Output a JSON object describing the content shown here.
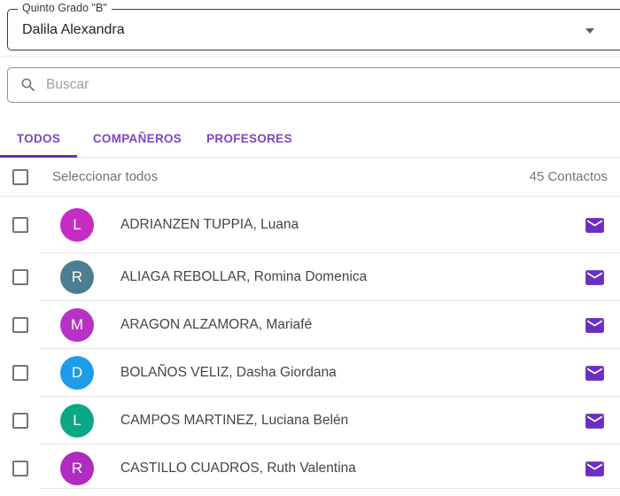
{
  "header": {
    "group_label": "Quinto Grado \"B\"",
    "selected_student": "Dalila Alexandra"
  },
  "search": {
    "placeholder": "Buscar"
  },
  "tabs": [
    {
      "label": "TODOS",
      "active": true
    },
    {
      "label": "COMPAÑEROS",
      "active": false
    },
    {
      "label": "PROFESORES",
      "active": false
    }
  ],
  "select_all": {
    "label": "Seleccionar todos",
    "count_label": "45 Contactos"
  },
  "contacts": [
    {
      "initial": "L",
      "name": "ADRIANZEN TUPPIA, Luana",
      "avatar_color": "#c42cc4"
    },
    {
      "initial": "R",
      "name": "ALIAGA REBOLLAR, Romina Domenica",
      "avatar_color": "#4d7d90"
    },
    {
      "initial": "M",
      "name": "ARAGON ALZAMORA, Mariafé",
      "avatar_color": "#b632c6"
    },
    {
      "initial": "D",
      "name": "BOLAÑOS VELIZ, Dasha Giordana",
      "avatar_color": "#1d9ce9"
    },
    {
      "initial": "L",
      "name": "CAMPOS MARTINEZ, Luciana Belén",
      "avatar_color": "#0ba888"
    },
    {
      "initial": "R",
      "name": "CASTILLO CUADROS, Ruth Valentina",
      "avatar_color": "#b02bbf"
    }
  ],
  "icons": {
    "search": "search-icon (magnifier)",
    "mail": "mail-icon (envelope)",
    "dropdown": "chevron-down-icon (triangle)"
  },
  "colors": {
    "tab_text": "#7c46c6",
    "tab_indicator": "#5f35b1",
    "mail_icon": "#6a2fc1",
    "divider": "#e6e6e6",
    "muted_text": "#757575"
  }
}
